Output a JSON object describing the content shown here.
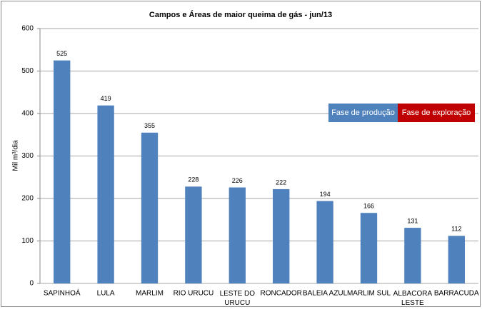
{
  "chart_data": {
    "type": "bar",
    "title": "Campos e Áreas de maior queima de gás - jun/13",
    "y_label": "Mil m³/dia",
    "categories": [
      "SAPINHOÁ",
      "LULA",
      "MARLIM",
      "RIO URUCU",
      "LESTE DO URUCU",
      "RONCADOR",
      "BALEIA AZUL",
      "MARLIM SUL",
      "ALBACORA LESTE",
      "BARRACUDA"
    ],
    "values": [
      525,
      419,
      355,
      228,
      226,
      222,
      194,
      166,
      131,
      112
    ],
    "color": "#4f81bd",
    "legend": [
      {
        "name": "Fase de produção",
        "color": "#4f81bd"
      },
      {
        "name": "Fase de exploração",
        "color": "#c00000"
      }
    ],
    "ylim": [
      0,
      600
    ],
    "yticks": [
      0,
      100,
      200,
      300,
      400,
      500,
      600
    ],
    "grid": true
  }
}
